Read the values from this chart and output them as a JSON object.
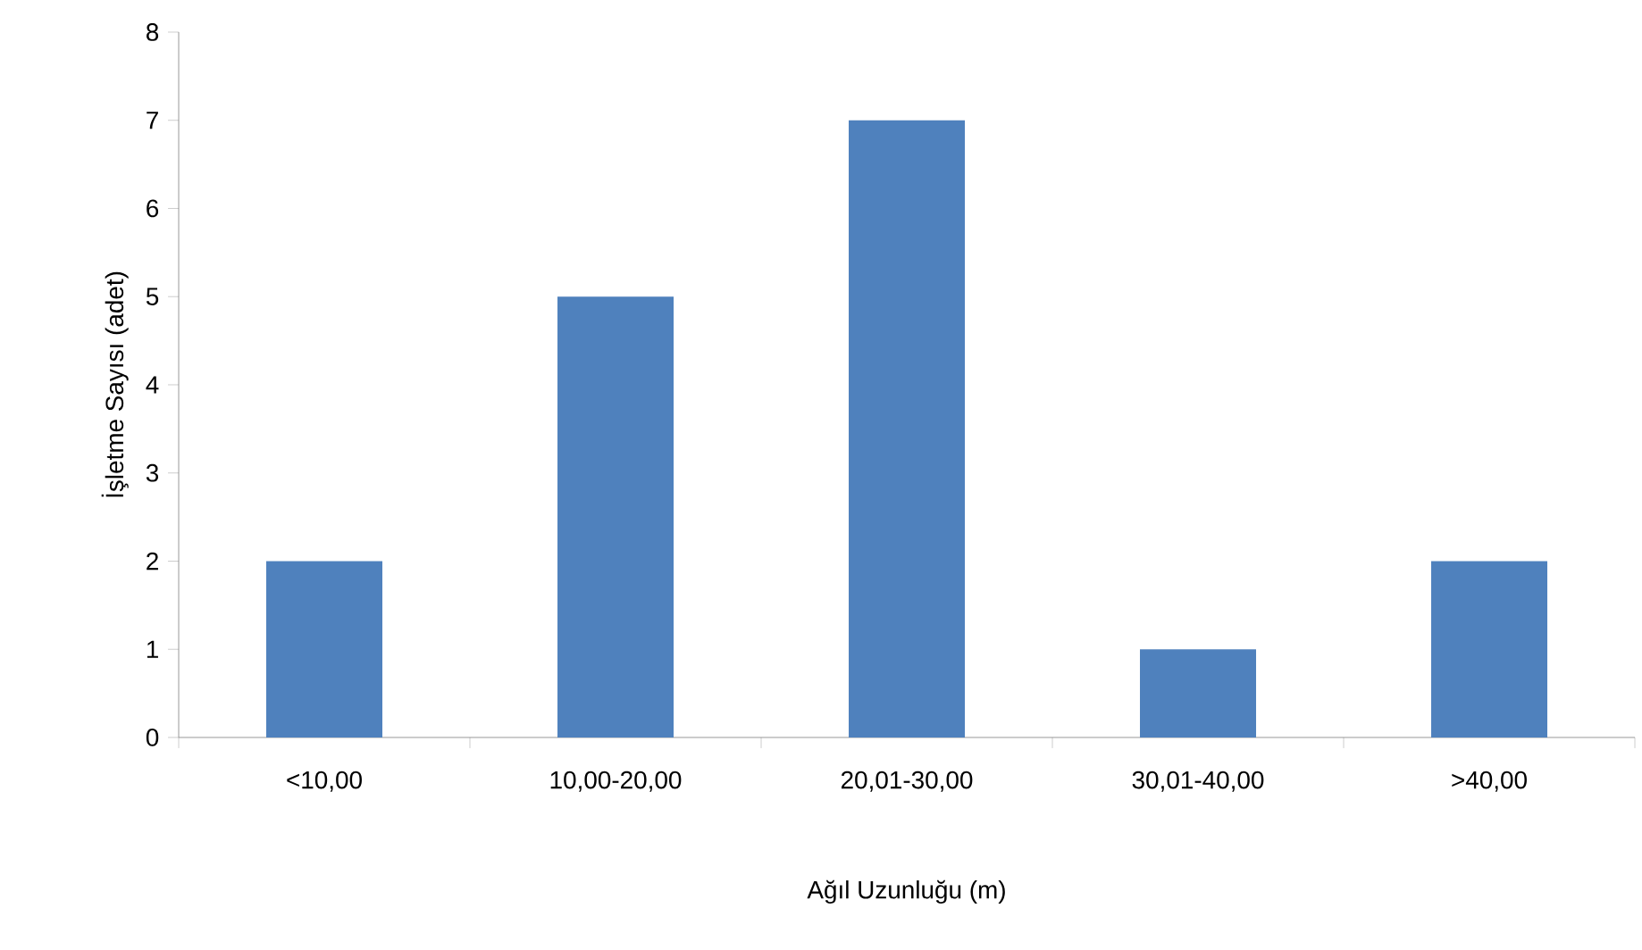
{
  "chart_data": {
    "type": "bar",
    "xlabel": "Ağıl Uzunluğu (m)",
    "ylabel": "İşletme Sayısı (adet)",
    "categories": [
      "<10,00",
      "10,00-20,00",
      "20,01-30,00",
      "30,01-40,00",
      ">40,00"
    ],
    "values": [
      2,
      5,
      7,
      1,
      2
    ],
    "color": "#4f81bd",
    "ylim": [
      0,
      8
    ],
    "yticks": [
      0,
      1,
      2,
      3,
      4,
      5,
      6,
      7,
      8
    ],
    "grid": false
  }
}
